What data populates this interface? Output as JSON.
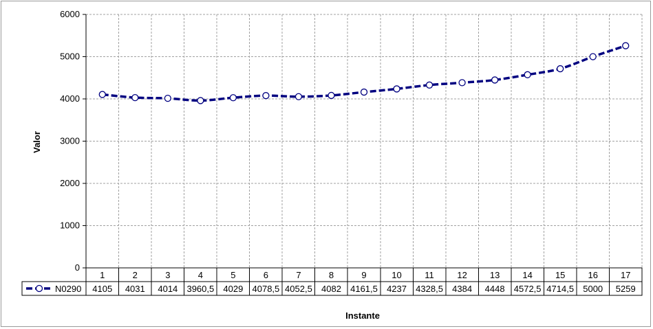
{
  "chart_data": {
    "type": "line",
    "title": "",
    "xlabel": "Instante",
    "ylabel": "Valor",
    "ylim": [
      0,
      6000
    ],
    "yticks": [
      0,
      1000,
      2000,
      3000,
      4000,
      5000,
      6000
    ],
    "grid": true,
    "legend": "data-table",
    "categories": [
      "1",
      "2",
      "3",
      "4",
      "5",
      "6",
      "7",
      "8",
      "9",
      "10",
      "11",
      "12",
      "13",
      "14",
      "15",
      "16",
      "17"
    ],
    "series": [
      {
        "name": "N0290",
        "color": "#000080",
        "marker": "circle-open",
        "line_style": "dashed",
        "values": [
          4105,
          4031,
          4014,
          3960.5,
          4029,
          4078.5,
          4052.5,
          4082,
          4161.5,
          4237,
          4328.5,
          4384,
          4448,
          4572.5,
          4714.5,
          5000,
          5259
        ],
        "value_labels": [
          "4105",
          "4031",
          "4014",
          "3960,5",
          "4029",
          "4078,5",
          "4052,5",
          "4082",
          "4161,5",
          "4237",
          "4328,5",
          "4384",
          "4448",
          "4572,5",
          "4714,5",
          "5000",
          "5259"
        ]
      }
    ]
  }
}
